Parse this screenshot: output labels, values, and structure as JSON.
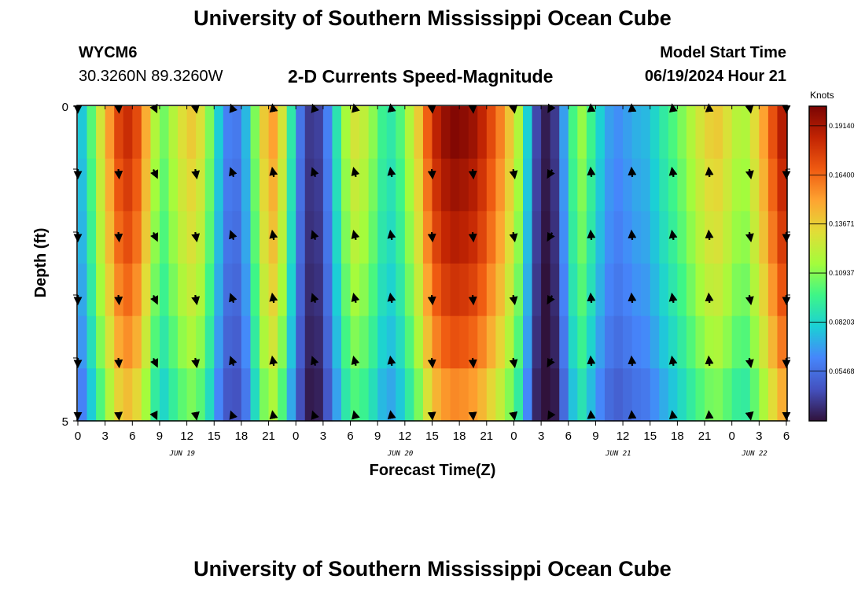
{
  "header": {
    "title": "University of Southern Mississippi Ocean Cube",
    "station": "WYCM6",
    "coords": "30.3260N  89.3260W",
    "subtitle": "2-D Currents Speed-Magnitude",
    "model_start_label": "Model Start Time",
    "model_start_value": "06/19/2024 Hour 21"
  },
  "footer": {
    "title": "University of Southern Mississippi Ocean Cube"
  },
  "chart_data": {
    "type": "heatmap",
    "title": "2-D Currents Speed-Magnitude",
    "xlabel": "Forecast Time(Z)",
    "ylabel": "Depth (ft)",
    "xlim": [
      0,
      78
    ],
    "ylim": [
      0,
      5
    ],
    "x_tick_labels": [
      "0",
      "3",
      "6",
      "9",
      "12",
      "15",
      "18",
      "21",
      "0",
      "3",
      "6",
      "9",
      "12",
      "15",
      "18",
      "21",
      "0",
      "3",
      "6",
      "9",
      "12",
      "15",
      "18",
      "21",
      "0",
      "3",
      "6"
    ],
    "x_tick_hours": [
      0,
      3,
      6,
      9,
      12,
      15,
      18,
      21,
      24,
      27,
      30,
      33,
      36,
      39,
      42,
      45,
      48,
      51,
      54,
      57,
      60,
      63,
      66,
      69,
      72,
      75,
      78
    ],
    "day_labels": [
      {
        "text": "JUN 19",
        "hour": 11.5
      },
      {
        "text": "JUN 20",
        "hour": 35.5
      },
      {
        "text": "JUN 21",
        "hour": 59.5
      },
      {
        "text": "JUN 22",
        "hour": 74.5
      }
    ],
    "y_tick_labels": [
      {
        "text": "0",
        "depth": 0
      },
      {
        "text": "5",
        "depth": 5
      }
    ],
    "colorbar": {
      "unit": "Knots",
      "min": 0.027,
      "max": 0.2023,
      "ticks": [
        "0.19140",
        "0.16400",
        "0.13671",
        "0.10937",
        "0.08203",
        "0.05468"
      ],
      "tick_values": [
        0.1914,
        0.164,
        0.13671,
        0.10937,
        0.08203,
        0.05468
      ]
    },
    "depths": [
      0,
      1,
      2,
      3,
      4,
      5
    ],
    "hours": [
      0,
      1,
      2,
      3,
      4,
      5,
      6,
      7,
      8,
      9,
      10,
      11,
      12,
      13,
      14,
      15,
      16,
      17,
      18,
      19,
      20,
      21,
      22,
      23,
      24,
      25,
      26,
      27,
      28,
      29,
      30,
      31,
      32,
      33,
      34,
      35,
      36,
      37,
      38,
      39,
      40,
      41,
      42,
      43,
      44,
      45,
      46,
      47,
      48,
      49,
      50,
      51,
      52,
      53,
      54,
      55,
      56,
      57,
      58,
      59,
      60,
      61,
      62,
      63,
      64,
      65,
      66,
      67,
      68,
      69,
      70,
      71,
      72,
      73,
      74,
      75,
      76,
      77
    ],
    "speed_by_hour": [
      0.078,
      0.101,
      0.128,
      0.152,
      0.174,
      0.182,
      0.172,
      0.147,
      0.118,
      0.106,
      0.119,
      0.131,
      0.138,
      0.13,
      0.108,
      0.079,
      0.06,
      0.058,
      0.074,
      0.108,
      0.138,
      0.15,
      0.128,
      0.09,
      0.056,
      0.038,
      0.04,
      0.06,
      0.088,
      0.115,
      0.128,
      0.122,
      0.11,
      0.095,
      0.09,
      0.1,
      0.118,
      0.138,
      0.166,
      0.186,
      0.196,
      0.2,
      0.198,
      0.194,
      0.185,
      0.172,
      0.158,
      0.14,
      0.118,
      0.08,
      0.042,
      0.03,
      0.038,
      0.068,
      0.098,
      0.112,
      0.096,
      0.08,
      0.068,
      0.064,
      0.068,
      0.072,
      0.074,
      0.082,
      0.091,
      0.099,
      0.108,
      0.118,
      0.128,
      0.136,
      0.138,
      0.13,
      0.12,
      0.118,
      0.132,
      0.15,
      0.17,
      0.188
    ],
    "depth_factor": [
      1.0,
      0.97,
      0.94,
      0.9,
      0.85,
      0.78
    ],
    "vector_hours": [
      0,
      4.5,
      8.5,
      13,
      17,
      21.5,
      26,
      30.5,
      34.5,
      39,
      43.5,
      48,
      52,
      56.5,
      61,
      65.5,
      69.5,
      74,
      78
    ],
    "vector_depths": [
      0,
      1,
      2,
      3,
      4,
      5
    ],
    "vector_directions_deg": [
      180,
      175,
      155,
      170,
      340,
      350,
      340,
      345,
      350,
      175,
      175,
      170,
      210,
      355,
      355,
      350,
      355,
      170,
      180
    ]
  }
}
